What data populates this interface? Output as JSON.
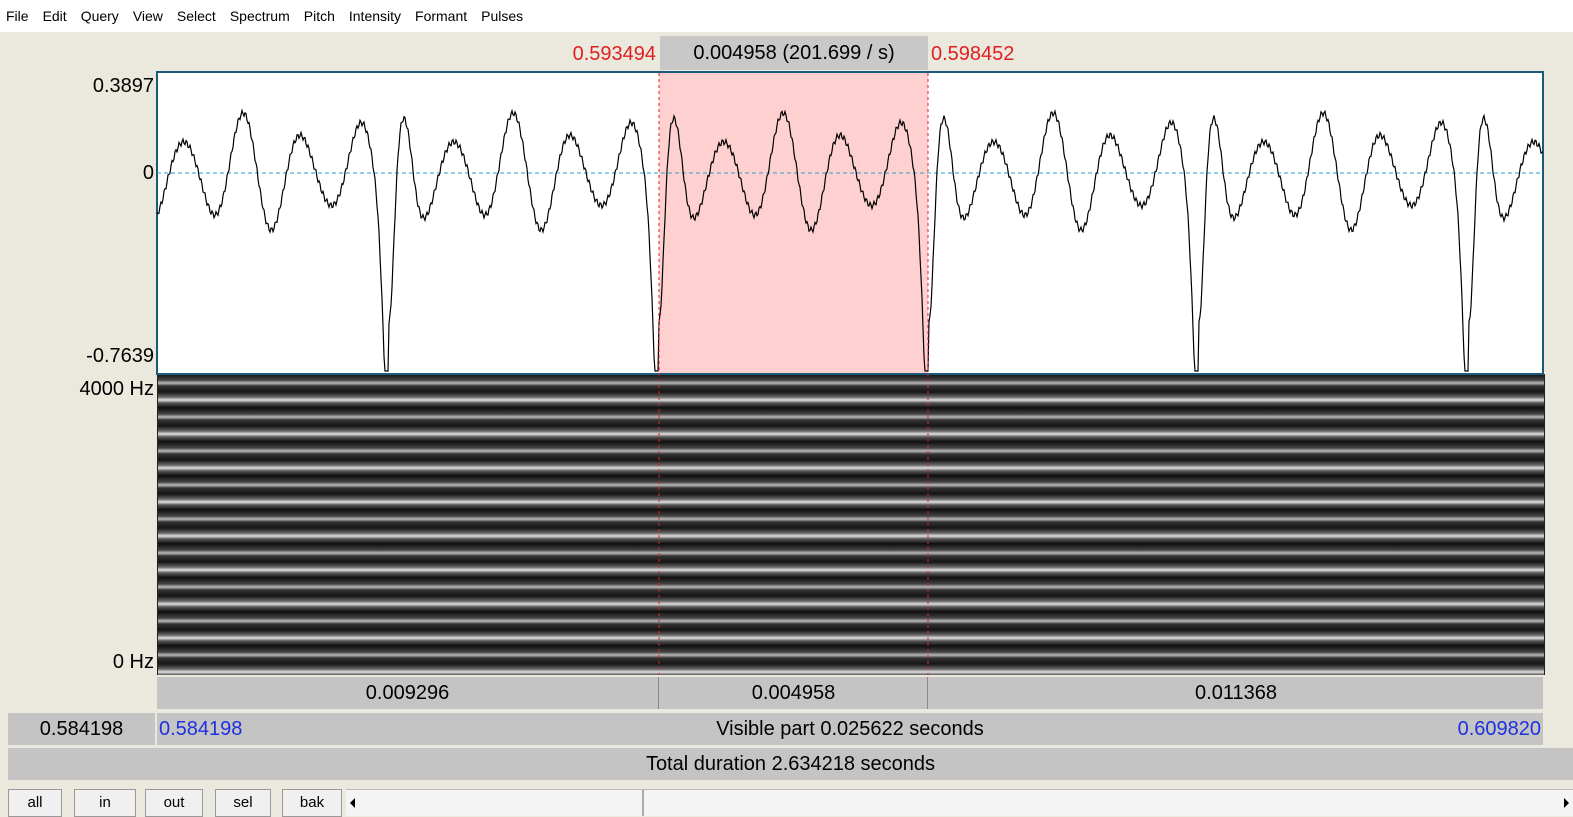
{
  "menu": [
    "File",
    "Edit",
    "Query",
    "View",
    "Select",
    "Spectrum",
    "Pitch",
    "Intensity",
    "Formant",
    "Pulses"
  ],
  "selection": {
    "start": "0.593494",
    "duration": "0.004958 (201.699 / s)",
    "end": "0.598452"
  },
  "waveform": {
    "max": "0.3897",
    "zero": "0",
    "min": "-0.7639"
  },
  "spectrogram": {
    "top": "4000 Hz",
    "bottom": "0 Hz"
  },
  "segments": [
    "0.009296",
    "0.004958",
    "0.011368"
  ],
  "visible": {
    "cursor": "0.584198",
    "start": "0.584198",
    "label": "Visible part 0.025622 seconds",
    "end": "0.609820"
  },
  "total": "Total duration 2.634218 seconds",
  "buttons": [
    "all",
    "in",
    "out",
    "sel",
    "bak"
  ]
}
